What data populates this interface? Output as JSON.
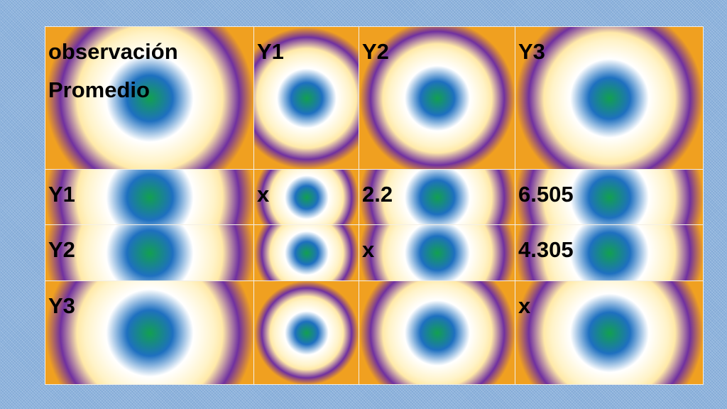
{
  "table": {
    "header": [
      "observación Promedio",
      "Y1",
      "Y2",
      "Y3"
    ],
    "rows": [
      [
        "Y1",
        "x",
        "2.2",
        "6.505"
      ],
      [
        "Y2",
        null,
        "x",
        "4.305"
      ],
      [
        "Y3",
        null,
        null,
        "x"
      ]
    ]
  }
}
